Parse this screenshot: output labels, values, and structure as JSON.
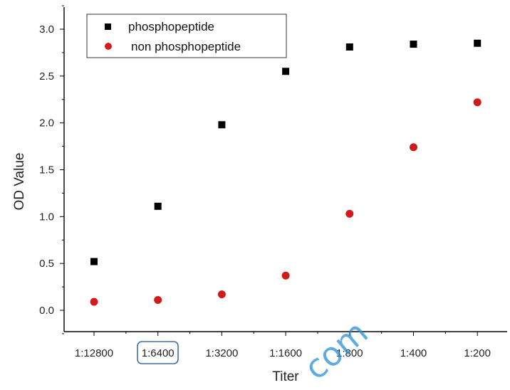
{
  "chart_data": {
    "type": "scatter",
    "categories": [
      "1:12800",
      "1:6400",
      "1:3200",
      "1:1600",
      "1:800",
      "1:400",
      "1:200"
    ],
    "series": [
      {
        "name": "phosphopeptide",
        "values": [
          0.52,
          1.11,
          1.98,
          2.55,
          2.81,
          2.84,
          2.85
        ],
        "color": "#000000",
        "marker": "square"
      },
      {
        "name": "non phosphopeptide",
        "values": [
          0.09,
          0.11,
          0.17,
          0.37,
          1.03,
          1.74,
          2.22
        ],
        "color": "#d11b1b",
        "marker": "circle"
      }
    ],
    "xlabel": "Titer",
    "ylabel": "OD Value",
    "ylim": [
      -0.25,
      3.25
    ],
    "yticks": [
      "0.0",
      "0.5",
      "1.0",
      "1.5",
      "2.0",
      "2.5",
      "3.0"
    ],
    "grid": false,
    "legend_position": "top-left",
    "highlighted_category": "1:6400",
    "highlight_color": "#3d6ea8"
  },
  "watermark": "com"
}
